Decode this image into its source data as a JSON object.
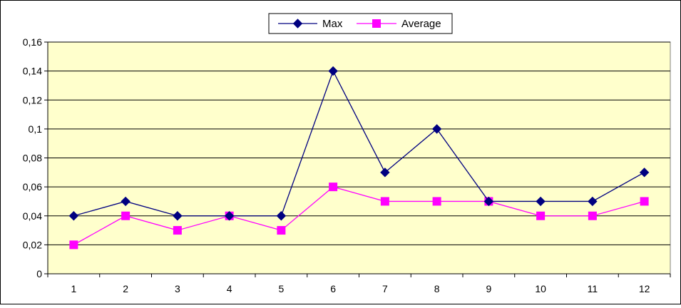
{
  "chart_data": {
    "type": "line",
    "title": "",
    "xlabel": "",
    "ylabel": "",
    "categories": [
      "1",
      "2",
      "3",
      "4",
      "5",
      "6",
      "7",
      "8",
      "9",
      "10",
      "11",
      "12"
    ],
    "y_ticks": [
      "0",
      "0,02",
      "0,04",
      "0,06",
      "0,08",
      "0,1",
      "0,12",
      "0,14",
      "0,16"
    ],
    "ylim": [
      0,
      0.16
    ],
    "grid": true,
    "legend_position": "top-center",
    "plot_background": "#ffffcc",
    "series": [
      {
        "name": "Max",
        "color": "#000080",
        "marker": "diamond",
        "values": [
          0.04,
          0.05,
          0.04,
          0.04,
          0.04,
          0.14,
          0.07,
          0.1,
          0.05,
          0.05,
          0.05,
          0.07
        ]
      },
      {
        "name": "Average",
        "color": "#ff00ff",
        "marker": "square",
        "values": [
          0.02,
          0.04,
          0.03,
          0.04,
          0.03,
          0.06,
          0.05,
          0.05,
          0.05,
          0.04,
          0.04,
          0.05
        ]
      }
    ]
  }
}
